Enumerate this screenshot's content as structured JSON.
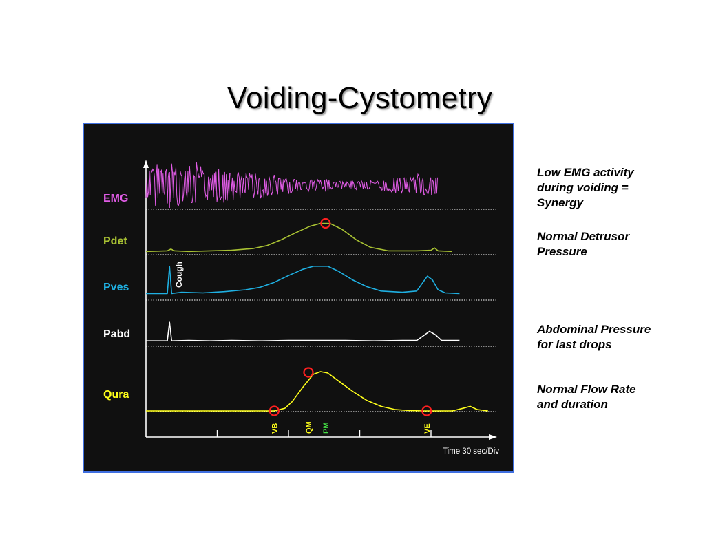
{
  "title": "Voiding-Cystometry",
  "annotations": [
    "Low EMG activity\nduring voiding =\nSynergy",
    "Normal Detrusor\nPressure",
    "Abdominal Pressure\nfor last drops",
    "Normal Flow Rate\nand duration"
  ],
  "chart_data": {
    "type": "line",
    "xlabel": "Time 30 sec/Div",
    "x_divisions": 5,
    "grid": false,
    "colors": {
      "EMG": "#e15ce6",
      "Pdet": "#a9c233",
      "Pves": "#1fb0e2",
      "Pabd": "#ffffff",
      "Qura": "#ffff1a",
      "marker": "#ff2020",
      "pm_label": "#44dd44",
      "ve_label": "#ffff1a"
    },
    "x": [
      0,
      0.2,
      0.4,
      0.6,
      0.7,
      0.8,
      0.9,
      1,
      1.1,
      1.2,
      1.4,
      1.6,
      1.8,
      2.0,
      2.2,
      2.5,
      2.7,
      2.8,
      3.0,
      3.2,
      3.4,
      3.6,
      3.8,
      4.0,
      4.1,
      4.2,
      4.3,
      4.4,
      4.5,
      4.6,
      4.7,
      4.8
    ],
    "series": [
      {
        "name": "EMG",
        "values": [
          9,
          10,
          10,
          9,
          12,
          9,
          8,
          8,
          8,
          7,
          6,
          6,
          5,
          4,
          3,
          3,
          2,
          2,
          2,
          2,
          3,
          4,
          5,
          5,
          4,
          3,
          3,
          3,
          3,
          3,
          5,
          5
        ]
      },
      {
        "name": "Pdet",
        "values": [
          2,
          2,
          3,
          3,
          5,
          4,
          2,
          2,
          3,
          3,
          5,
          6,
          8,
          12,
          25,
          42,
          52,
          56,
          56,
          42,
          26,
          10,
          5,
          3,
          3,
          3,
          3,
          3,
          3,
          3,
          5,
          2
        ]
      },
      {
        "name": "Pves",
        "values": [
          4,
          4,
          5,
          6,
          45,
          4,
          5,
          5,
          5,
          6,
          8,
          10,
          12,
          16,
          24,
          40,
          55,
          58,
          57,
          52,
          38,
          18,
          9,
          5,
          5,
          6,
          9,
          30,
          32,
          14,
          5,
          4
        ]
      },
      {
        "name": "Pabd",
        "values": [
          3,
          3,
          3,
          4,
          50,
          3,
          4,
          3,
          4,
          4,
          3,
          4,
          4,
          3,
          4,
          5,
          5,
          4,
          4,
          5,
          4,
          4,
          4,
          4,
          3,
          4,
          6,
          24,
          26,
          12,
          4,
          4
        ]
      },
      {
        "name": "Qura",
        "values": [
          0,
          0,
          0,
          0,
          0,
          0,
          0,
          0,
          0,
          0,
          0,
          0,
          0,
          0,
          0,
          0,
          0,
          30,
          28,
          18,
          8,
          3,
          1,
          0,
          0,
          0,
          0,
          0,
          0,
          0,
          0,
          0
        ]
      }
    ],
    "rows": [
      {
        "label": "EMG",
        "kind": "emg",
        "amp": 13
      },
      {
        "label": "Pdet",
        "scale": 0.85
      },
      {
        "label": "Pves",
        "scale": 0.9,
        "annotation": "Cough"
      },
      {
        "label": "Pabd",
        "scale": 0.6
      },
      {
        "label": "Qura",
        "scale": 1.8
      }
    ],
    "flow": {
      "points": [
        [
          0,
          0
        ],
        [
          1.5,
          0
        ],
        [
          1.8,
          0
        ],
        [
          1.95,
          4
        ],
        [
          2.05,
          14
        ],
        [
          2.2,
          36
        ],
        [
          2.35,
          56
        ],
        [
          2.45,
          60
        ],
        [
          2.55,
          58
        ],
        [
          2.7,
          46
        ],
        [
          2.9,
          30
        ],
        [
          3.1,
          16
        ],
        [
          3.3,
          7
        ],
        [
          3.5,
          2
        ],
        [
          3.7,
          0.5
        ],
        [
          3.9,
          0
        ],
        [
          4.1,
          0
        ],
        [
          4.3,
          0
        ],
        [
          4.45,
          4
        ],
        [
          4.55,
          7
        ],
        [
          4.65,
          2
        ],
        [
          4.8,
          0
        ]
      ]
    },
    "pdet_points": [
      [
        0,
        2
      ],
      [
        0.3,
        3
      ],
      [
        0.35,
        6
      ],
      [
        0.4,
        3
      ],
      [
        0.6,
        2
      ],
      [
        0.9,
        3
      ],
      [
        1.2,
        4
      ],
      [
        1.5,
        7
      ],
      [
        1.7,
        12
      ],
      [
        1.9,
        22
      ],
      [
        2.1,
        34
      ],
      [
        2.3,
        45
      ],
      [
        2.45,
        50
      ],
      [
        2.58,
        50
      ],
      [
        2.75,
        40
      ],
      [
        2.95,
        22
      ],
      [
        3.15,
        9
      ],
      [
        3.4,
        3
      ],
      [
        3.8,
        3
      ],
      [
        4.0,
        4
      ],
      [
        4.05,
        8
      ],
      [
        4.1,
        3
      ],
      [
        4.3,
        2
      ]
    ],
    "pves_points": [
      [
        0,
        4
      ],
      [
        0.3,
        4
      ],
      [
        0.33,
        48
      ],
      [
        0.36,
        4
      ],
      [
        0.5,
        6
      ],
      [
        0.8,
        5
      ],
      [
        1.1,
        7
      ],
      [
        1.4,
        10
      ],
      [
        1.6,
        14
      ],
      [
        1.8,
        22
      ],
      [
        2.0,
        33
      ],
      [
        2.2,
        43
      ],
      [
        2.35,
        48
      ],
      [
        2.55,
        48
      ],
      [
        2.7,
        40
      ],
      [
        2.9,
        26
      ],
      [
        3.1,
        15
      ],
      [
        3.3,
        8
      ],
      [
        3.6,
        6
      ],
      [
        3.8,
        8
      ],
      [
        3.9,
        24
      ],
      [
        3.95,
        32
      ],
      [
        4.02,
        26
      ],
      [
        4.1,
        10
      ],
      [
        4.2,
        5
      ],
      [
        4.4,
        4
      ]
    ],
    "pabd_points": [
      [
        0,
        3
      ],
      [
        0.3,
        3
      ],
      [
        0.33,
        48
      ],
      [
        0.36,
        3
      ],
      [
        0.6,
        4
      ],
      [
        0.9,
        3
      ],
      [
        1.2,
        4
      ],
      [
        1.6,
        3
      ],
      [
        2.0,
        4
      ],
      [
        2.4,
        4
      ],
      [
        2.8,
        4
      ],
      [
        3.2,
        3
      ],
      [
        3.6,
        4
      ],
      [
        3.8,
        4
      ],
      [
        3.9,
        16
      ],
      [
        3.98,
        26
      ],
      [
        4.06,
        18
      ],
      [
        4.15,
        4
      ],
      [
        4.4,
        4
      ]
    ],
    "events": [
      {
        "label": "VB",
        "x": 1.8,
        "row": "Qura",
        "marker": true,
        "color": "#ffff1a"
      },
      {
        "label": "QM",
        "x": 2.28,
        "row": "Qura",
        "marker": true,
        "color": "#ffff1a"
      },
      {
        "label": "PM",
        "x": 2.52,
        "row": "Pdet",
        "marker": true,
        "color": "#44dd44"
      },
      {
        "label": "VE",
        "x": 3.94,
        "row": "Qura",
        "marker": true,
        "color": "#ffff1a"
      }
    ]
  }
}
